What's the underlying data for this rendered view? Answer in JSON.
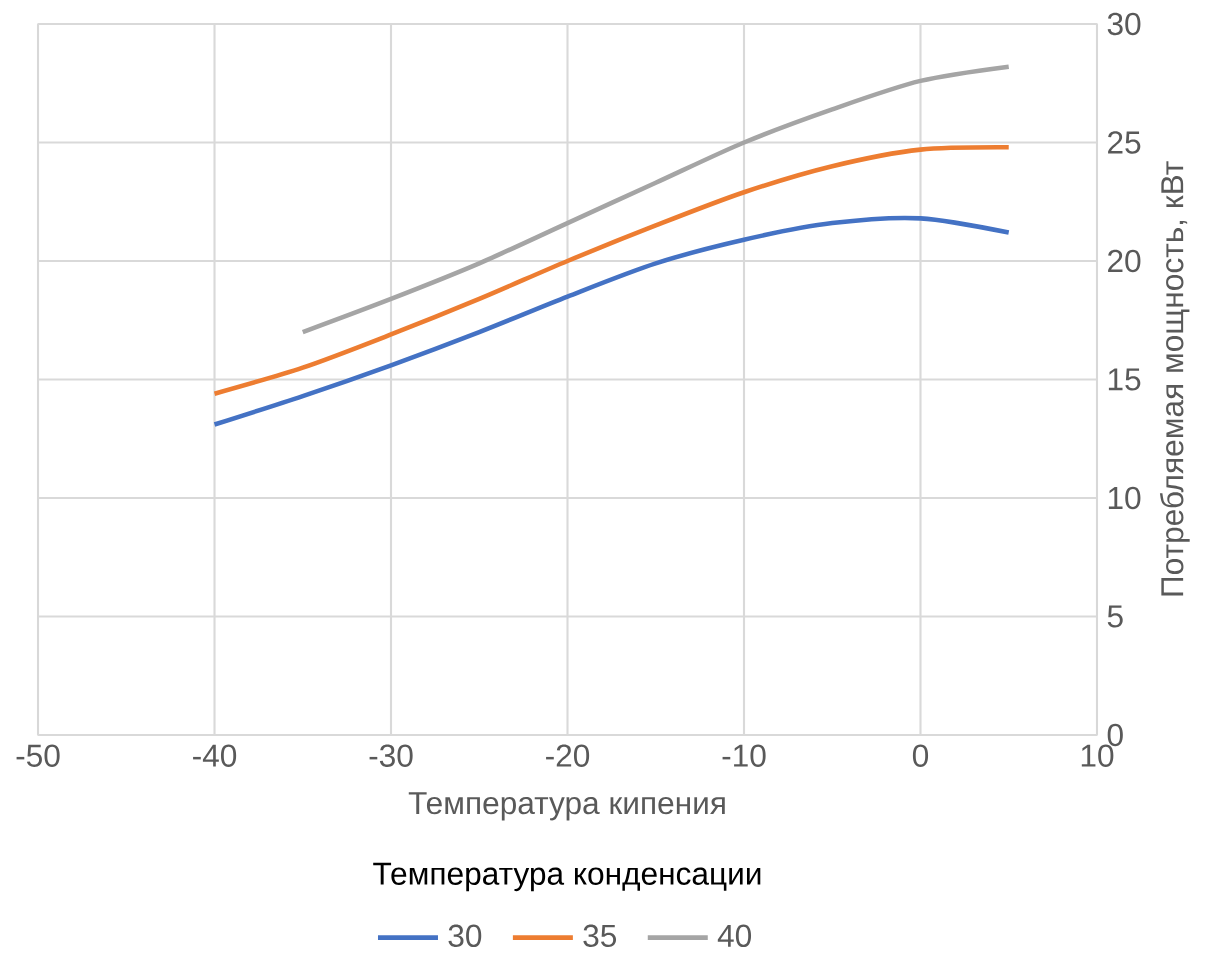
{
  "chart_data": {
    "type": "line",
    "xlabel": "Температура кипения",
    "ylabel": "Потребляемая мощность, кВт",
    "legend_title": "Температура конденсации",
    "xlim": [
      -50,
      10
    ],
    "ylim": [
      0,
      30
    ],
    "xticks": [
      -50,
      -40,
      -30,
      -20,
      -10,
      0,
      10
    ],
    "yticks": [
      0,
      5,
      10,
      15,
      20,
      25,
      30
    ],
    "grid": true,
    "legend": "bottom",
    "marker": "none",
    "line_style": "solid",
    "series": [
      {
        "name": "30",
        "color": "#4472c4",
        "x": [
          -40,
          -35,
          -30,
          -25,
          -20,
          -15,
          -10,
          -5,
          0,
          5
        ],
        "values": [
          13.1,
          14.3,
          15.6,
          17.0,
          18.5,
          19.9,
          20.9,
          21.6,
          21.8,
          21.2
        ]
      },
      {
        "name": "35",
        "color": "#ed7d31",
        "x": [
          -40,
          -35,
          -30,
          -25,
          -20,
          -15,
          -10,
          -5,
          0,
          5
        ],
        "values": [
          14.4,
          15.5,
          16.9,
          18.4,
          20.0,
          21.5,
          22.9,
          24.0,
          24.7,
          24.8
        ]
      },
      {
        "name": "40",
        "color": "#a5a5a5",
        "x": [
          -35,
          -30,
          -25,
          -20,
          -15,
          -10,
          -5,
          0,
          5
        ],
        "values": [
          17.0,
          18.4,
          19.9,
          21.6,
          23.3,
          25.0,
          26.4,
          27.6,
          28.2
        ]
      }
    ]
  }
}
